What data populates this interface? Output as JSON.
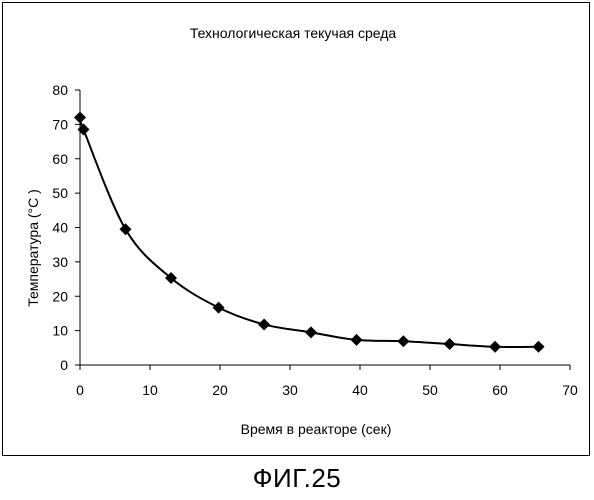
{
  "chart_data": {
    "type": "line",
    "title": "Технологическая текучая среда",
    "xlabel": "Время в реакторе (сек)",
    "ylabel": "Температура  (°C )",
    "xlim": [
      0,
      70
    ],
    "ylim": [
      0,
      80
    ],
    "x_ticks": [
      0,
      10,
      20,
      30,
      40,
      50,
      60,
      70
    ],
    "y_ticks": [
      0,
      10,
      20,
      30,
      40,
      50,
      60,
      70,
      80
    ],
    "grid": false,
    "legend": "none",
    "marker": "diamond",
    "color": "#000000",
    "series": [
      {
        "x": [
          0,
          0.5,
          6.5,
          13,
          19.8,
          26.3,
          33,
          39.5,
          46.2,
          52.8,
          59.3,
          65.5
        ],
        "y": [
          72,
          68.5,
          39.5,
          25.3,
          16.7,
          11.8,
          9.5,
          7.3,
          6.9,
          6.1,
          5.3,
          5.3
        ]
      }
    ]
  },
  "caption": "ФИГ.25"
}
